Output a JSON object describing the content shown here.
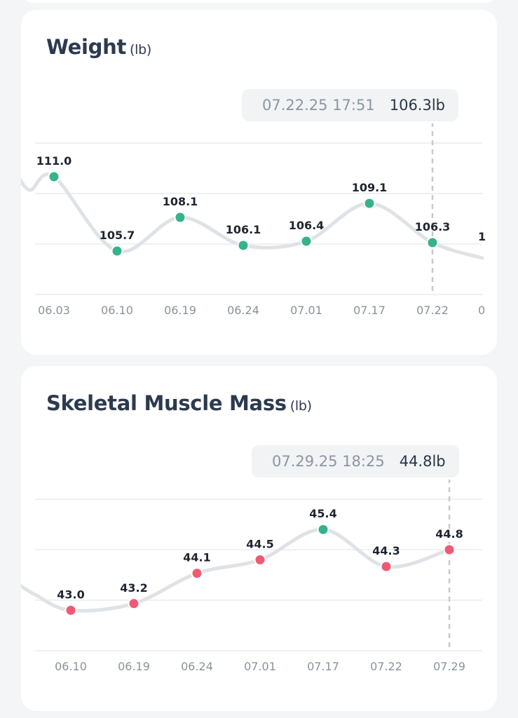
{
  "weight_card": {
    "title": "Weight",
    "unit": "(lb)",
    "tooltip": {
      "time": "07.22.25 17:51",
      "value": "106.3lb"
    }
  },
  "smm_card": {
    "title": "Skeletal Muscle Mass",
    "unit": "(lb)",
    "tooltip": {
      "time": "07.29.25 18:25",
      "value": "44.8lb"
    }
  },
  "colors": {
    "title": "#2c3a4f",
    "line": "#dfe2e6",
    "grid": "#e9ecef",
    "dashed_marker": "#c6cacf",
    "point_green": "#35b38a",
    "point_red": "#ef5a73"
  },
  "chart_data": [
    {
      "type": "line",
      "title": "Weight",
      "ylabel": "(lb)",
      "categories": [
        "06.03",
        "06.10",
        "06.19",
        "06.24",
        "07.01",
        "07.17",
        "07.22"
      ],
      "values": [
        111.0,
        105.7,
        108.1,
        106.1,
        106.4,
        109.1,
        106.3
      ],
      "labels": [
        "111.0",
        "105.7",
        "108.1",
        "106.1",
        "106.4",
        "109.1",
        "106.3"
      ],
      "point_colors": [
        "green",
        "green",
        "green",
        "green",
        "green",
        "green",
        "green"
      ],
      "selected": "07.22",
      "ylim": [
        102.6,
        113.4
      ],
      "grid": true
    },
    {
      "type": "line",
      "title": "Skeletal Muscle Mass",
      "ylabel": "(lb)",
      "categories": [
        "06.10",
        "06.19",
        "06.24",
        "07.01",
        "07.17",
        "07.22",
        "07.29"
      ],
      "values": [
        43.0,
        43.2,
        44.1,
        44.5,
        45.4,
        44.3,
        44.8
      ],
      "labels": [
        "43.0",
        "43.2",
        "44.1",
        "44.5",
        "45.4",
        "44.3",
        "44.8"
      ],
      "point_colors": [
        "red",
        "red",
        "red",
        "red",
        "green",
        "red",
        "red"
      ],
      "selected": "07.29",
      "ylim": [
        41.8,
        46.3
      ],
      "grid": true
    }
  ]
}
